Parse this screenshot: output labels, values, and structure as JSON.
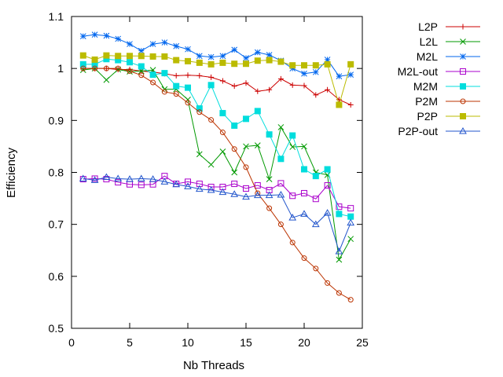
{
  "chart_data": {
    "type": "line",
    "title": "",
    "xlabel": "Nb Threads",
    "ylabel": "Efficiency",
    "xlim": [
      0,
      25
    ],
    "ylim": [
      0.5,
      1.1
    ],
    "x_ticks": [
      "0",
      "5",
      "10",
      "15",
      "20",
      "25"
    ],
    "y_ticks": [
      "0.5",
      "0.6",
      "0.7",
      "0.8",
      "0.9",
      "1",
      "1.1"
    ],
    "grid": false,
    "legend_position": "top-right, outside plot",
    "x": [
      1,
      2,
      3,
      4,
      5,
      6,
      7,
      8,
      9,
      10,
      11,
      12,
      13,
      14,
      15,
      16,
      17,
      18,
      19,
      20,
      21,
      22,
      23,
      24
    ],
    "series": [
      {
        "name": "L2P",
        "color": "#cc0000",
        "marker": "plus",
        "values": [
          1.0,
          1.0,
          1.0,
          0.998,
          0.998,
          0.995,
          0.993,
          0.99,
          0.986,
          0.987,
          0.986,
          0.983,
          0.976,
          0.966,
          0.972,
          0.956,
          0.959,
          0.98,
          0.968,
          0.967,
          0.949,
          0.959,
          0.94,
          0.93
        ]
      },
      {
        "name": "L2L",
        "color": "#009900",
        "marker": "cross",
        "values": [
          0.997,
          1.0,
          0.978,
          0.998,
          0.994,
          0.995,
          0.997,
          0.96,
          0.96,
          0.94,
          0.835,
          0.815,
          0.84,
          0.8,
          0.85,
          0.852,
          0.787,
          0.887,
          0.849,
          0.85,
          0.8,
          0.795,
          0.632,
          0.672
        ]
      },
      {
        "name": "M2L",
        "color": "#0066ee",
        "marker": "star",
        "values": [
          1.062,
          1.065,
          1.063,
          1.057,
          1.047,
          1.034,
          1.047,
          1.05,
          1.043,
          1.037,
          1.024,
          1.022,
          1.024,
          1.036,
          1.02,
          1.031,
          1.026,
          1.015,
          1.0,
          0.99,
          0.993,
          1.017,
          0.985,
          0.988
        ]
      },
      {
        "name": "M2L-out",
        "color": "#aa00cc",
        "marker": "square-open",
        "values": [
          0.787,
          0.788,
          0.787,
          0.781,
          0.777,
          0.776,
          0.777,
          0.793,
          0.778,
          0.782,
          0.778,
          0.772,
          0.772,
          0.778,
          0.769,
          0.775,
          0.766,
          0.779,
          0.755,
          0.76,
          0.749,
          0.775,
          0.734,
          0.731
        ]
      },
      {
        "name": "M2M",
        "color": "#00dddd",
        "marker": "square",
        "values": [
          1.008,
          1.008,
          1.018,
          1.016,
          1.012,
          1.004,
          0.988,
          0.991,
          0.966,
          0.963,
          0.923,
          0.968,
          0.914,
          0.89,
          0.903,
          0.918,
          0.873,
          0.826,
          0.871,
          0.806,
          0.793,
          0.806,
          0.72,
          0.715
        ]
      },
      {
        "name": "P2M",
        "color": "#bb3300",
        "marker": "circle-open",
        "values": [
          1.0,
          1.0,
          1.0,
          1.0,
          0.995,
          0.987,
          0.973,
          0.955,
          0.951,
          0.934,
          0.916,
          0.901,
          0.877,
          0.845,
          0.81,
          0.76,
          0.731,
          0.7,
          0.665,
          0.635,
          0.615,
          0.587,
          0.568,
          0.555
        ]
      },
      {
        "name": "P2P",
        "color": "#bbbb00",
        "marker": "square",
        "values": [
          1.025,
          1.017,
          1.025,
          1.024,
          1.024,
          1.024,
          1.023,
          1.023,
          1.016,
          1.014,
          1.011,
          1.008,
          1.011,
          1.009,
          1.009,
          1.015,
          1.016,
          1.013,
          1.006,
          1.006,
          1.006,
          1.008,
          0.93,
          1.008
        ]
      },
      {
        "name": "P2P-out",
        "color": "#2255cc",
        "marker": "triangle-open",
        "values": [
          0.788,
          0.785,
          0.791,
          0.788,
          0.787,
          0.788,
          0.787,
          0.782,
          0.777,
          0.773,
          0.768,
          0.766,
          0.762,
          0.758,
          0.753,
          0.756,
          0.756,
          0.757,
          0.713,
          0.72,
          0.7,
          0.722,
          0.648,
          0.703
        ]
      }
    ]
  }
}
